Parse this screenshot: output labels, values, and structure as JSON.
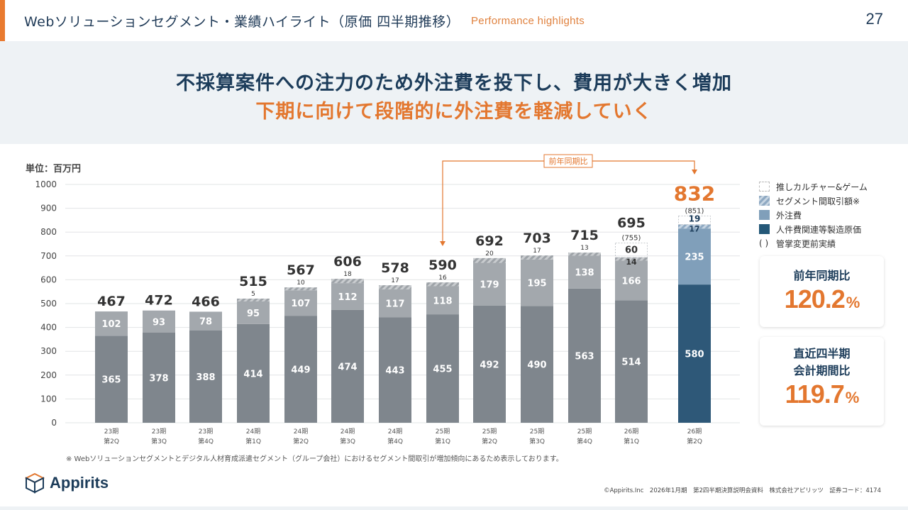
{
  "header": {
    "title": "Webソリューションセグメント・業績ハイライト（原価 四半期推移）",
    "subtitle": "Performance highlights",
    "page_number": "27"
  },
  "banner": {
    "line1": "不採算案件への注力のため外注費を投下し、費用が大きく増加",
    "line2": "下期に向けて段階的に外注費を軽減していく"
  },
  "unit_label": "単位：百万円",
  "yoy_bracket_label": "前年同期比",
  "legend": [
    {
      "key": "oshi",
      "label": "推しカルチャー&ゲーム",
      "style": "dotted"
    },
    {
      "key": "intersegment",
      "label": "セグメント間取引額※",
      "style": "hatched"
    },
    {
      "key": "outsourcing",
      "label": "外注費",
      "color": "#809fba"
    },
    {
      "key": "labor",
      "label": "人件費関連等製造原価",
      "color": "#245878"
    },
    {
      "key": "paren",
      "label": "管掌変更前実績",
      "marker": "( )"
    }
  ],
  "cards": [
    {
      "label_lines": [
        "前年同期比"
      ],
      "value": "120.2",
      "unit": "%"
    },
    {
      "label_lines": [
        "直近四半期",
        "会計期間比"
      ],
      "value": "119.7",
      "unit": "%"
    }
  ],
  "footnote": "※ Webソリューションセグメントとデジタル人材育成派遣セグメント（グループ会社）におけるセグメント間取引が増加傾向にあるため表示しております。",
  "logo_text": "Appirits",
  "copyright": "©Appirits.Inc　2026年1月期　第2四半期決算説明会資料　株式会社アピリッツ　証券コード：4174",
  "colors": {
    "accent": "#e3772f",
    "navy": "#1c3c5a",
    "gray_labor": "#7f868d",
    "gray_outsource": "#a3a8ad",
    "highlight_labor": "#2e5878",
    "highlight_outsource": "#809fba"
  },
  "chart_data": {
    "type": "bar",
    "stacked": true,
    "title": "",
    "ylabel": "単位：百万円",
    "ylim": [
      0,
      1000
    ],
    "yticks": [
      0,
      100,
      200,
      300,
      400,
      500,
      600,
      700,
      800,
      900,
      1000
    ],
    "grid": true,
    "legend_position": "right",
    "categories": [
      [
        "23期",
        "第2Q"
      ],
      [
        "23期",
        "第3Q"
      ],
      [
        "23期",
        "第4Q"
      ],
      [
        "24期",
        "第1Q"
      ],
      [
        "24期",
        "第2Q"
      ],
      [
        "24期",
        "第3Q"
      ],
      [
        "24期",
        "第4Q"
      ],
      [
        "25期",
        "第1Q"
      ],
      [
        "25期",
        "第2Q"
      ],
      [
        "25期",
        "第3Q"
      ],
      [
        "25期",
        "第4Q"
      ],
      [
        "26期",
        "第1Q"
      ],
      [
        "26期",
        "第2Q"
      ]
    ],
    "series": [
      {
        "name": "人件費関連等製造原価",
        "values": [
          365,
          378,
          388,
          414,
          449,
          474,
          443,
          455,
          492,
          490,
          563,
          514,
          580
        ]
      },
      {
        "name": "外注費",
        "values": [
          102,
          93,
          78,
          95,
          107,
          112,
          117,
          118,
          179,
          195,
          138,
          166,
          235
        ]
      },
      {
        "name": "セグメント間取引額※",
        "values": [
          null,
          null,
          null,
          5,
          10,
          18,
          17,
          16,
          20,
          17,
          13,
          14,
          17
        ]
      },
      {
        "name": "推しカルチャー&ゲーム",
        "values": [
          null,
          null,
          null,
          null,
          null,
          null,
          null,
          null,
          null,
          null,
          null,
          60,
          19
        ]
      }
    ],
    "totals": [
      467,
      472,
      466,
      515,
      567,
      606,
      578,
      590,
      692,
      703,
      715,
      695,
      832
    ],
    "totals_before_change": [
      null,
      null,
      null,
      null,
      null,
      null,
      null,
      null,
      null,
      null,
      null,
      755,
      851
    ],
    "highlight_index": 12,
    "annotations": [
      {
        "text": "前年同期比",
        "from_category": 7,
        "to_category": 12
      }
    ]
  }
}
